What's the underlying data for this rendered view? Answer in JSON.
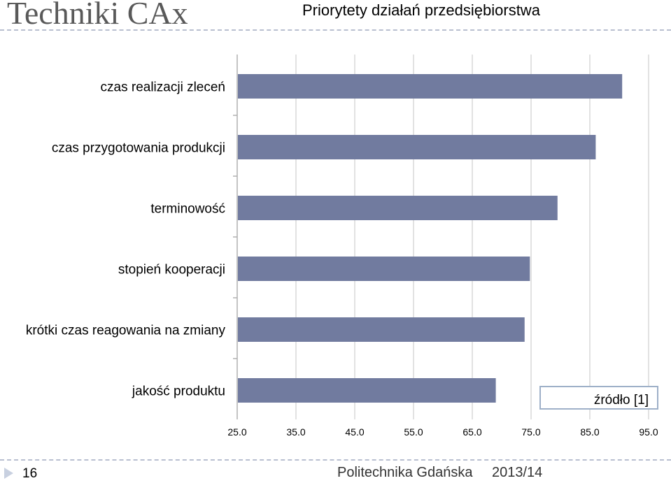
{
  "header": {
    "brand": "Techniki CAx",
    "title": "Priorytety działań przedsiębiorstwa"
  },
  "source_note": "źródło [1]",
  "footer": {
    "page_number": "16",
    "institution": "Politechnika Gdańska",
    "year": "2013/14"
  },
  "colors": {
    "bar": "#717b9f",
    "grid": "#d9d9d9",
    "axis": "#b0b0b0",
    "accent_rule": "#b8bfd0"
  },
  "chart_data": {
    "type": "bar",
    "orientation": "horizontal",
    "title": "Priorytety działań przedsiębiorstwa",
    "categories": [
      "czas realizacji zleceń",
      "czas przygotowania produkcji",
      "terminowość",
      "stopień kooperacji",
      "krótki czas reagowania na zmiany",
      "jakość produktu"
    ],
    "values": [
      90.5,
      86.0,
      79.5,
      74.8,
      73.9,
      69.0
    ],
    "x_ticks": [
      "25.0",
      "35.0",
      "45.0",
      "55.0",
      "65.0",
      "75.0",
      "85.0",
      "95.0"
    ],
    "xlim": [
      25,
      95
    ],
    "grid": true,
    "legend": "none"
  }
}
